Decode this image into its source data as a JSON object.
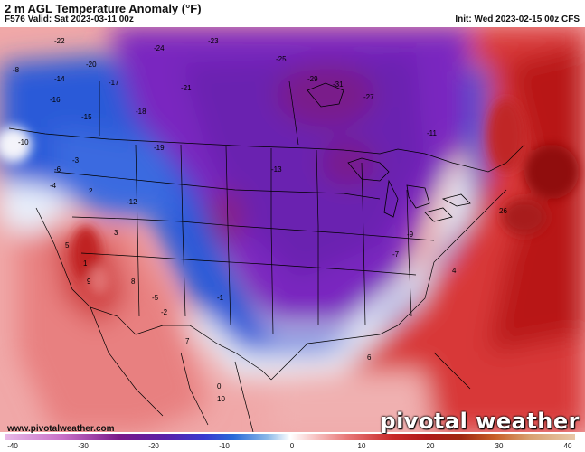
{
  "header": {
    "title": "2 m AGL Temperature Anomaly (°F)",
    "valid": "F576 Valid: Sat 2023-03-11 00z",
    "init": "Init: Wed 2023-02-15 00z CFS"
  },
  "footer": {
    "watermark": "www.pivotalweather.com",
    "logo": "pivotal weather"
  },
  "colorbar": {
    "ticks": [
      "-40",
      "-30",
      "-20",
      "-10",
      "0",
      "10",
      "20",
      "30",
      "40"
    ],
    "colors": {
      "deep_purple": "#5a1a9a",
      "purple": "#7a2ab8",
      "blue": "#2a5ad8",
      "light_blue": "#8ab8e8",
      "white": "#ffffff",
      "light_red": "#f0a0a0",
      "red": "#d83030",
      "dark_red": "#a01818"
    }
  },
  "anomaly_labels": [
    {
      "id": "l1",
      "t": "-22"
    },
    {
      "id": "l2",
      "t": "-24"
    },
    {
      "id": "l3",
      "t": "-23"
    },
    {
      "id": "l4",
      "t": "-25"
    },
    {
      "id": "l5",
      "t": "-29"
    },
    {
      "id": "l6",
      "t": "-31"
    },
    {
      "id": "l7",
      "t": "-27"
    },
    {
      "id": "l8",
      "t": "-20"
    },
    {
      "id": "l9",
      "t": "-17"
    },
    {
      "id": "l10",
      "t": "-16"
    },
    {
      "id": "l11",
      "t": "-14"
    },
    {
      "id": "l12",
      "t": "-8"
    },
    {
      "id": "l13",
      "t": "-15"
    },
    {
      "id": "l14",
      "t": "-18"
    },
    {
      "id": "l15",
      "t": "-21"
    },
    {
      "id": "l16",
      "t": "-19"
    },
    {
      "id": "l17",
      "t": "-10"
    },
    {
      "id": "l18",
      "t": "-3"
    },
    {
      "id": "l19",
      "t": "-6"
    },
    {
      "id": "l20",
      "t": "-4"
    },
    {
      "id": "l21",
      "t": "2"
    },
    {
      "id": "l22",
      "t": "-12"
    },
    {
      "id": "l23",
      "t": "5"
    },
    {
      "id": "l24",
      "t": "3"
    },
    {
      "id": "l25",
      "t": "9"
    },
    {
      "id": "l26",
      "t": "1"
    },
    {
      "id": "l27",
      "t": "-5"
    },
    {
      "id": "l28",
      "t": "8"
    },
    {
      "id": "l29",
      "t": "-2"
    },
    {
      "id": "l30",
      "t": "-1"
    },
    {
      "id": "l31",
      "t": "0"
    },
    {
      "id": "l32",
      "t": "6"
    },
    {
      "id": "l33",
      "t": "10"
    },
    {
      "id": "l34",
      "t": "-11"
    },
    {
      "id": "l35",
      "t": "-13"
    },
    {
      "id": "l36",
      "t": "26"
    },
    {
      "id": "l37",
      "t": "4"
    },
    {
      "id": "l38",
      "t": "-9"
    },
    {
      "id": "l39",
      "t": "-7"
    },
    {
      "id": "l40",
      "t": "7"
    }
  ]
}
